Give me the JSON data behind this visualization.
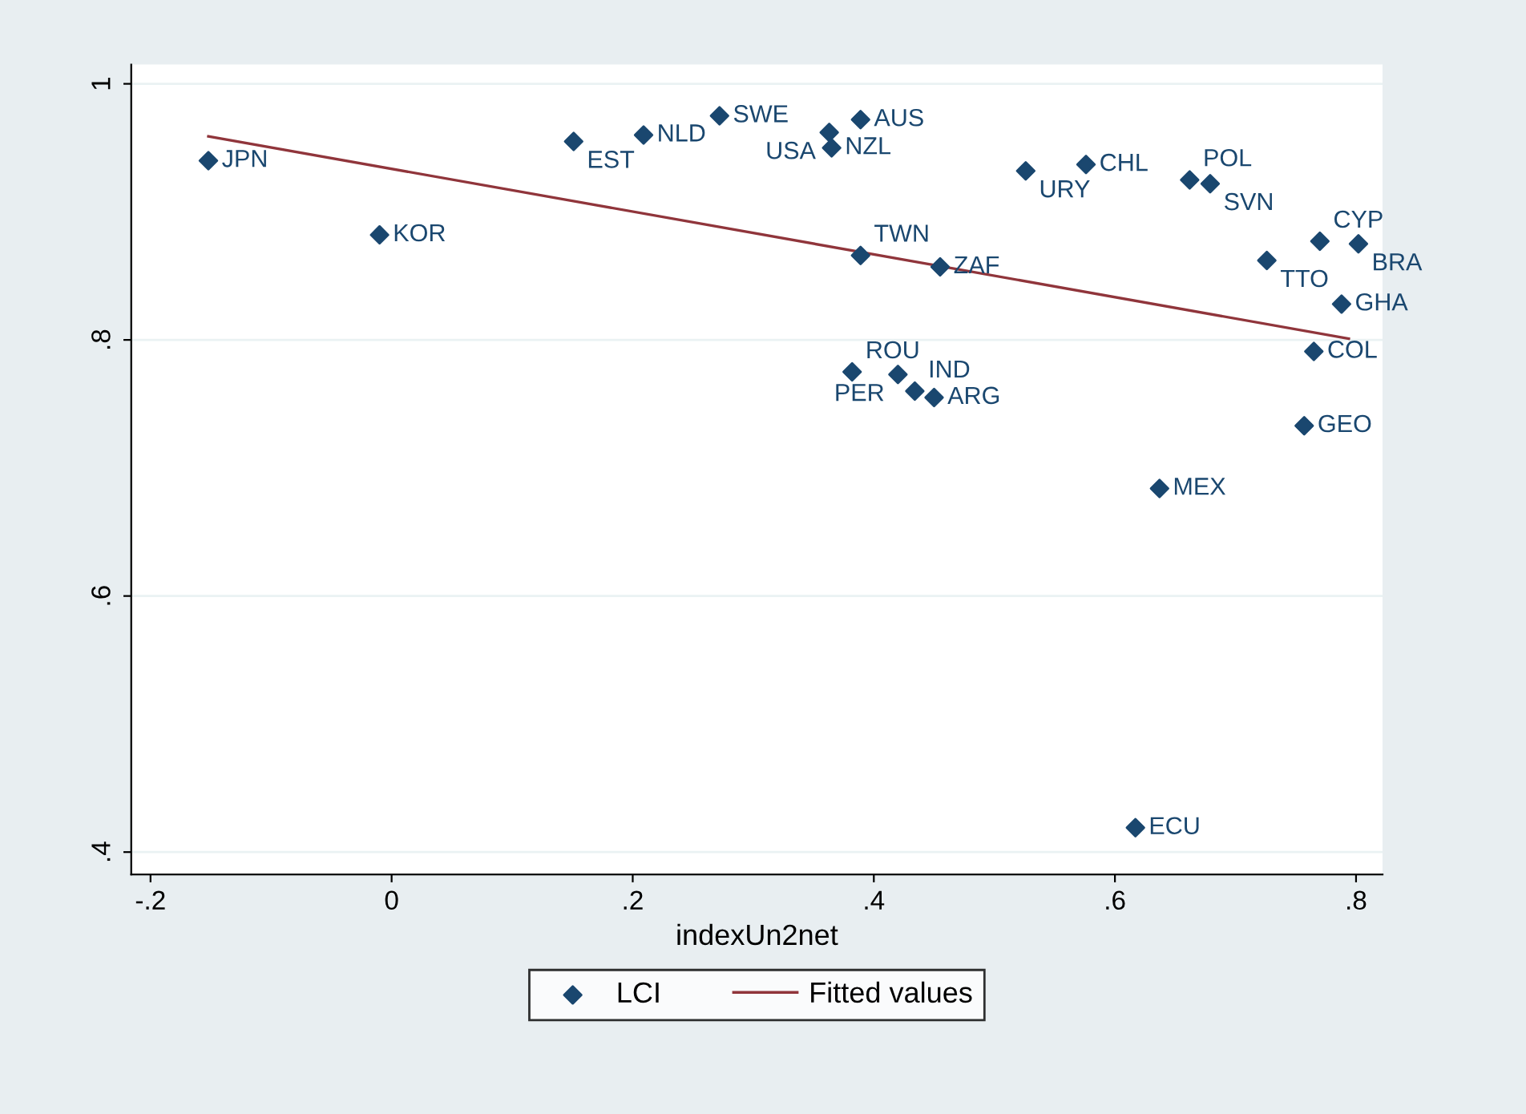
{
  "chart_data": {
    "type": "scatter",
    "xlabel": "indexUn2net",
    "xlim": [
      -0.216,
      0.822
    ],
    "ylim": [
      0.3825,
      1.015
    ],
    "xticks": [
      {
        "value": -0.2,
        "label": "-.2"
      },
      0,
      {
        "value": 0.2,
        "label": ".2"
      },
      {
        "value": 0.4,
        "label": ".4"
      },
      {
        "value": 0.6,
        "label": ".6"
      },
      {
        "value": 0.8,
        "label": ".8"
      }
    ],
    "yticks": [
      {
        "value": 0.4,
        "label": ".4"
      },
      {
        "value": 0.6,
        "label": ".6"
      },
      {
        "value": 0.8,
        "label": ".8"
      },
      1
    ],
    "grid": "y",
    "legend": "bottom",
    "series": [
      {
        "name": "LCI",
        "type": "scatter",
        "marker": "diamond",
        "color": "#1a476f",
        "x": [
          -0.152,
          -0.01,
          0.151,
          0.209,
          0.272,
          0.363,
          0.365,
          0.389,
          0.526,
          0.576,
          0.662,
          0.679,
          0.77,
          0.802,
          0.726,
          0.788,
          0.765,
          0.757,
          0.637,
          0.617,
          0.389,
          0.455,
          0.382,
          0.42,
          0.434,
          0.45
        ],
        "values": [
          0.94,
          0.882,
          0.955,
          0.96,
          0.975,
          0.962,
          0.95,
          0.972,
          0.932,
          0.937,
          0.925,
          0.922,
          0.877,
          0.875,
          0.862,
          0.828,
          0.791,
          0.733,
          0.684,
          0.419,
          0.866,
          0.857,
          0.775,
          0.773,
          0.76,
          0.755
        ]
      },
      {
        "name": "Fitted values",
        "type": "line",
        "marker": "none",
        "line_style": "solid",
        "color": "#90353b",
        "x": [
          -0.152,
          0.794
        ],
        "values": [
          0.959,
          0.801
        ]
      }
    ],
    "annotations": [
      {
        "text": "JPN",
        "x": -0.152,
        "y": 0.94
      },
      {
        "text": "KOR",
        "x": -0.01,
        "y": 0.882
      },
      {
        "text": "EST",
        "x": 0.151,
        "y": 0.955
      },
      {
        "text": "NLD",
        "x": 0.209,
        "y": 0.96
      },
      {
        "text": "SWE",
        "x": 0.272,
        "y": 0.975
      },
      {
        "text": "USA",
        "x": 0.363,
        "y": 0.962
      },
      {
        "text": "NZL",
        "x": 0.365,
        "y": 0.95
      },
      {
        "text": "AUS",
        "x": 0.389,
        "y": 0.972
      },
      {
        "text": "URY",
        "x": 0.526,
        "y": 0.932
      },
      {
        "text": "CHL",
        "x": 0.576,
        "y": 0.937
      },
      {
        "text": "POL",
        "x": 0.662,
        "y": 0.925
      },
      {
        "text": "SVN",
        "x": 0.679,
        "y": 0.922
      },
      {
        "text": "CYP",
        "x": 0.77,
        "y": 0.877
      },
      {
        "text": "BRA",
        "x": 0.802,
        "y": 0.875
      },
      {
        "text": "TTO",
        "x": 0.726,
        "y": 0.862
      },
      {
        "text": "GHA",
        "x": 0.788,
        "y": 0.828
      },
      {
        "text": "COL",
        "x": 0.765,
        "y": 0.791
      },
      {
        "text": "GEO",
        "x": 0.757,
        "y": 0.733
      },
      {
        "text": "MEX",
        "x": 0.637,
        "y": 0.684
      },
      {
        "text": "ECU",
        "x": 0.617,
        "y": 0.419
      },
      {
        "text": "TWN",
        "x": 0.389,
        "y": 0.866
      },
      {
        "text": "ZAF",
        "x": 0.455,
        "y": 0.857
      },
      {
        "text": "ROU",
        "x": 0.382,
        "y": 0.775
      },
      {
        "text": "PER",
        "x": 0.42,
        "y": 0.773
      },
      {
        "text": "IND",
        "x": 0.434,
        "y": 0.76
      },
      {
        "text": "ARG",
        "x": 0.45,
        "y": 0.755
      }
    ]
  }
}
